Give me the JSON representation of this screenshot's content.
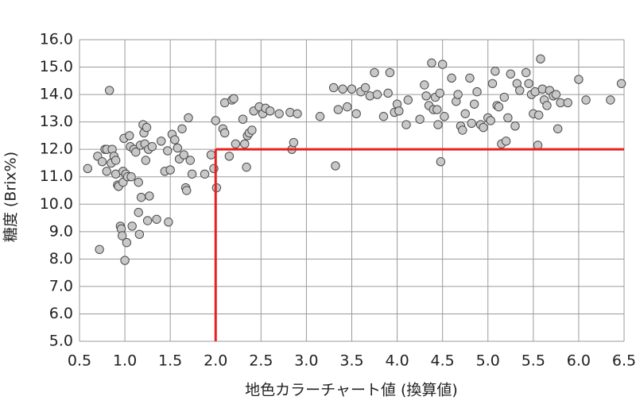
{
  "chart_data": {
    "type": "scatter",
    "x_label": "地色カラーチャート値 (換算値)",
    "y_label": "糖度 (Brix%)",
    "xlim": [
      0.5,
      6.5
    ],
    "ylim": [
      5,
      16
    ],
    "xticks": [
      0.5,
      {
        "value": 1,
        "label": "1.0"
      },
      1.5,
      {
        "value": 2,
        "label": "2.0"
      },
      2.5,
      {
        "value": 3,
        "label": "3.0"
      },
      3.5,
      {
        "value": 4,
        "label": "4.0"
      },
      4.5,
      {
        "value": 5,
        "label": "5.0"
      },
      5.5,
      {
        "value": 6,
        "label": "6.0"
      },
      6.5
    ],
    "yticks": [
      {
        "value": 5,
        "label": "5.0"
      },
      {
        "value": 6,
        "label": "6.0"
      },
      {
        "value": 7,
        "label": "7.0"
      },
      {
        "value": 8,
        "label": "8.0"
      },
      {
        "value": 9,
        "label": "9.0"
      },
      {
        "value": 10,
        "label": "10.0"
      },
      {
        "value": 11,
        "label": "11.0"
      },
      {
        "value": 12,
        "label": "12.0"
      },
      {
        "value": 13,
        "label": "13.0"
      },
      {
        "value": 14,
        "label": "14.0"
      },
      {
        "value": 15,
        "label": "15.0"
      },
      {
        "value": 16,
        "label": "16.0"
      }
    ],
    "grid": true,
    "color": "#c8c8c8",
    "reference_lines": {
      "x": 2.0,
      "y": 12.0,
      "color": "#e8201e"
    },
    "x": [
      0.59,
      0.7,
      0.72,
      0.75,
      0.78,
      0.8,
      0.8,
      0.83,
      0.85,
      0.86,
      0.88,
      0.9,
      0.9,
      0.92,
      0.93,
      0.95,
      0.96,
      0.97,
      0.98,
      0.98,
      0.99,
      1.0,
      1.01,
      1.02,
      1.03,
      1.05,
      1.06,
      1.07,
      1.08,
      1.1,
      1.12,
      1.15,
      1.15,
      1.16,
      1.17,
      1.18,
      1.2,
      1.21,
      1.22,
      1.23,
      1.24,
      1.25,
      1.26,
      1.27,
      1.3,
      1.35,
      1.4,
      1.44,
      1.47,
      1.48,
      1.5,
      1.52,
      1.55,
      1.58,
      1.6,
      1.63,
      1.65,
      1.67,
      1.68,
      1.7,
      1.72,
      1.74,
      1.88,
      1.95,
      1.98,
      2.0,
      2.01,
      2.08,
      2.1,
      2.1,
      2.15,
      2.18,
      2.2,
      2.22,
      2.3,
      2.32,
      2.34,
      2.35,
      2.37,
      2.4,
      2.42,
      2.48,
      2.52,
      2.55,
      2.6,
      2.7,
      2.82,
      2.84,
      2.86,
      2.9,
      3.15,
      3.3,
      3.32,
      3.35,
      3.4,
      3.45,
      3.5,
      3.55,
      3.6,
      3.65,
      3.7,
      3.75,
      3.78,
      3.85,
      3.9,
      3.92,
      3.97,
      4.0,
      4.02,
      4.1,
      4.12,
      4.25,
      4.3,
      4.32,
      4.35,
      4.38,
      4.4,
      4.42,
      4.44,
      4.45,
      4.47,
      4.48,
      4.5,
      4.52,
      4.6,
      4.65,
      4.67,
      4.7,
      4.72,
      4.75,
      4.8,
      4.82,
      4.85,
      4.88,
      4.92,
      4.95,
      5.0,
      5.03,
      5.05,
      5.08,
      5.1,
      5.12,
      5.15,
      5.18,
      5.2,
      5.22,
      5.25,
      5.3,
      5.32,
      5.35,
      5.42,
      5.45,
      5.48,
      5.5,
      5.52,
      5.55,
      5.56,
      5.58,
      5.6,
      5.62,
      5.65,
      5.68,
      5.72,
      5.75,
      5.77,
      5.8,
      5.88,
      6.0,
      6.08,
      6.35,
      6.47
    ],
    "values": [
      11.3,
      11.75,
      8.35,
      11.55,
      12.0,
      12.0,
      11.2,
      14.15,
      11.5,
      12.0,
      11.75,
      11.6,
      11.1,
      10.7,
      10.65,
      9.2,
      9.1,
      8.85,
      11.2,
      10.8,
      12.4,
      7.95,
      11.1,
      8.6,
      11.0,
      12.5,
      12.1,
      11.0,
      9.2,
      12.0,
      11.9,
      10.8,
      9.7,
      8.9,
      12.15,
      10.25,
      12.9,
      12.6,
      12.2,
      11.6,
      12.8,
      9.4,
      12.0,
      10.3,
      12.1,
      9.45,
      12.3,
      11.2,
      11.95,
      9.35,
      11.25,
      12.55,
      12.35,
      12.05,
      11.65,
      12.75,
      11.8,
      10.6,
      10.5,
      13.15,
      11.6,
      11.1,
      11.1,
      11.8,
      11.3,
      13.05,
      10.6,
      12.75,
      12.6,
      13.7,
      11.75,
      13.8,
      13.85,
      12.2,
      13.1,
      12.2,
      11.35,
      12.5,
      12.6,
      12.7,
      13.4,
      13.55,
      13.3,
      13.5,
      13.4,
      13.3,
      13.35,
      12.0,
      12.25,
      13.3,
      13.2,
      14.25,
      11.4,
      13.45,
      14.2,
      13.55,
      14.2,
      13.3,
      14.1,
      14.25,
      13.95,
      14.8,
      14.0,
      13.2,
      14.05,
      14.8,
      13.35,
      13.65,
      13.4,
      12.9,
      13.8,
      13.1,
      14.35,
      13.95,
      13.6,
      15.15,
      13.45,
      13.9,
      13.45,
      12.9,
      14.05,
      11.55,
      15.1,
      13.2,
      14.6,
      13.75,
      14.0,
      12.85,
      12.7,
      13.3,
      14.6,
      12.95,
      13.65,
      14.1,
      12.9,
      12.8,
      13.15,
      13.05,
      14.4,
      14.85,
      13.6,
      13.55,
      12.2,
      13.9,
      12.3,
      13.15,
      14.75,
      12.85,
      14.4,
      14.15,
      14.8,
      14.4,
      14.0,
      13.3,
      14.1,
      12.15,
      13.25,
      15.3,
      14.2,
      13.8,
      13.6,
      14.15,
      13.95,
      14.0,
      12.75,
      13.7,
      13.7,
      14.55,
      13.8,
      13.8,
      14.4
    ]
  }
}
